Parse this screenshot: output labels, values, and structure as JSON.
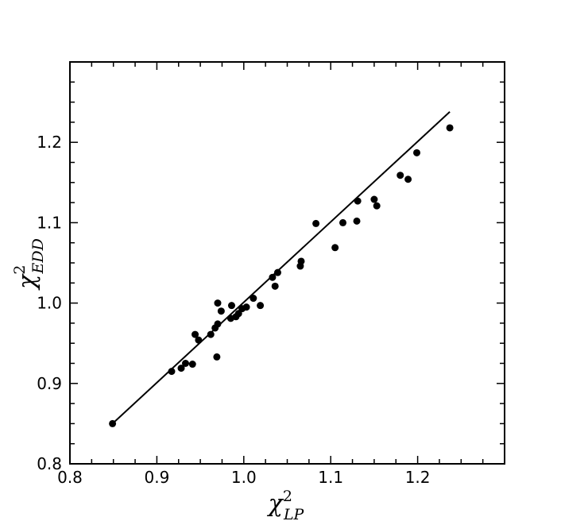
{
  "chart_data": {
    "type": "scatter",
    "title": "",
    "xlabel": {
      "base": "χ",
      "sup": "2",
      "sub": "LP"
    },
    "ylabel": {
      "base": "χ",
      "sup": "2",
      "sub": "EDD"
    },
    "xlim": [
      0.8,
      1.3
    ],
    "ylim": [
      0.8,
      1.3
    ],
    "xticks": [
      "0.8",
      "0.9",
      "1.0",
      "1.1",
      "1.2"
    ],
    "yticks": [
      "0.8",
      "0.9",
      "1.0",
      "1.1",
      "1.2"
    ],
    "grid": false,
    "legend": "none",
    "series": [
      {
        "kind": "points",
        "color": "#000000",
        "points": [
          [
            0.849,
            0.85
          ],
          [
            0.917,
            0.915
          ],
          [
            0.928,
            0.919
          ],
          [
            0.933,
            0.925
          ],
          [
            0.941,
            0.924
          ],
          [
            0.944,
            0.961
          ],
          [
            0.948,
            0.954
          ],
          [
            0.962,
            0.961
          ],
          [
            0.967,
            0.969
          ],
          [
            0.969,
            0.933
          ],
          [
            0.97,
            1.0
          ],
          [
            0.97,
            0.974
          ],
          [
            0.974,
            0.99
          ],
          [
            0.985,
            0.981
          ],
          [
            0.986,
            0.997
          ],
          [
            0.991,
            0.983
          ],
          [
            0.994,
            0.987
          ],
          [
            0.998,
            0.993
          ],
          [
            1.003,
            0.995
          ],
          [
            1.011,
            1.006
          ],
          [
            1.019,
            0.997
          ],
          [
            1.033,
            1.032
          ],
          [
            1.036,
            1.021
          ],
          [
            1.039,
            1.038
          ],
          [
            1.065,
            1.046
          ],
          [
            1.066,
            1.052
          ],
          [
            1.083,
            1.099
          ],
          [
            1.105,
            1.069
          ],
          [
            1.114,
            1.1
          ],
          [
            1.13,
            1.102
          ],
          [
            1.131,
            1.127
          ],
          [
            1.15,
            1.129
          ],
          [
            1.153,
            1.121
          ],
          [
            1.18,
            1.159
          ],
          [
            1.189,
            1.154
          ],
          [
            1.199,
            1.187
          ],
          [
            1.237,
            1.218
          ]
        ]
      },
      {
        "kind": "line",
        "color": "#000000",
        "points": [
          [
            0.849,
            0.85
          ],
          [
            1.237,
            1.238
          ]
        ]
      }
    ]
  }
}
